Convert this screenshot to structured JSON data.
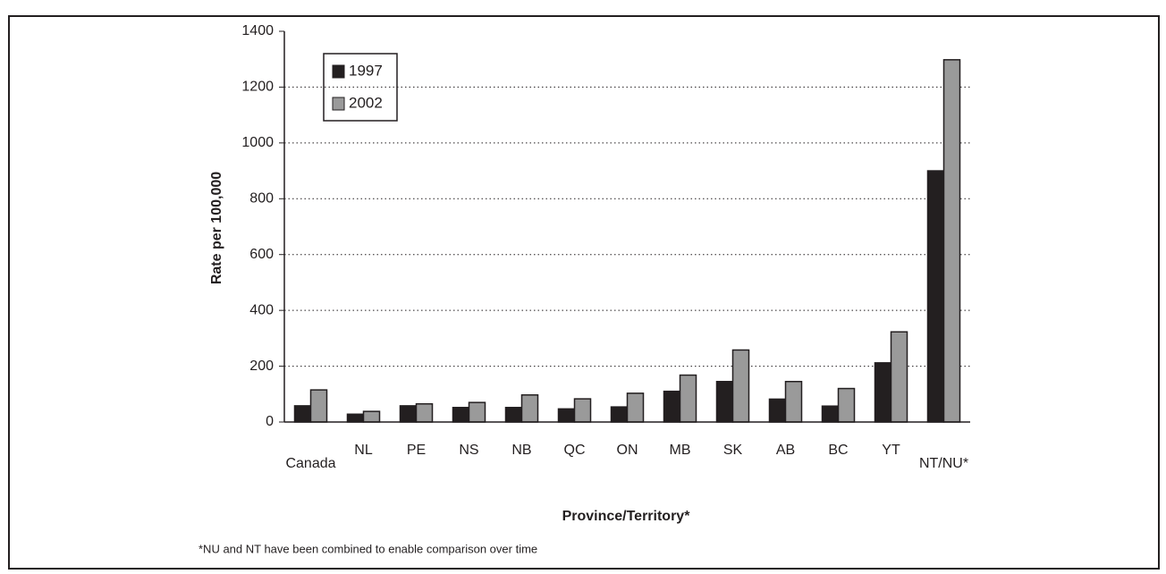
{
  "chart_data": {
    "type": "bar",
    "x_label": "Province/Territory*",
    "y_label": "Rate per 100,000",
    "note": "*NU and NT have been combined to enable comparison over time",
    "categories": [
      "Canada",
      "NL",
      "PE",
      "NS",
      "NB",
      "QC",
      "ON",
      "MB",
      "SK",
      "AB",
      "BC",
      "YT",
      "NT/NU*"
    ],
    "series": [
      {
        "name": "1997",
        "color": "#231f20",
        "values": [
          58,
          28,
          58,
          52,
          52,
          47,
          54,
          110,
          145,
          82,
          57,
          212,
          900
        ]
      },
      {
        "name": "2002",
        "color": "#9a9a9a",
        "values": [
          115,
          38,
          65,
          70,
          97,
          83,
          103,
          168,
          258,
          145,
          120,
          323,
          1298
        ]
      }
    ],
    "ylim": [
      0,
      1400
    ],
    "yticks": [
      0,
      200,
      400,
      600,
      800,
      1000,
      1200,
      1400
    ],
    "grid": true
  }
}
